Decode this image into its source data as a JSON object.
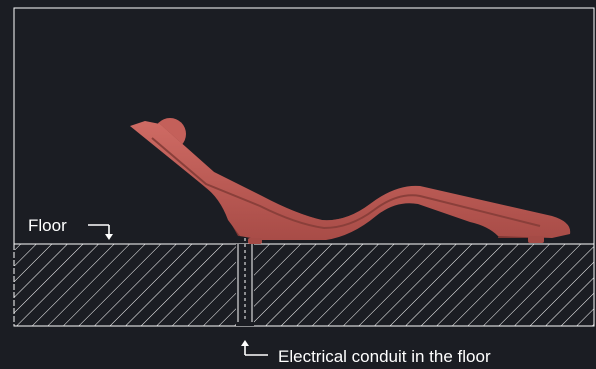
{
  "labels": {
    "floor": "Floor",
    "conduit": "Electrical conduit in the floor"
  },
  "colors": {
    "background": "#1b1d23",
    "outline": "#ffffff",
    "lounger": "#c4605a",
    "lounger_dark": "#9a4642",
    "lounger_shadow": "#6e2f2d",
    "hatch": "#ffffff"
  },
  "icons": {
    "floor_arrow": "bent-arrow-down-icon",
    "conduit_arrow": "bent-arrow-up-icon"
  }
}
